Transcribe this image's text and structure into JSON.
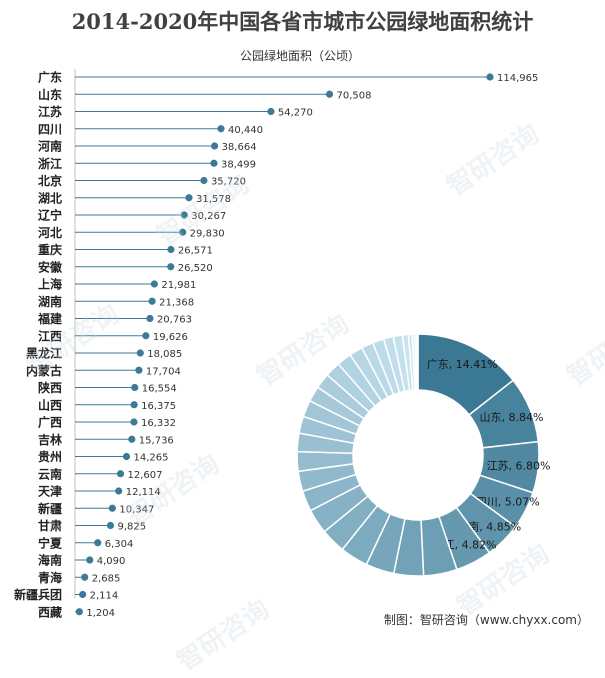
{
  "title": "2014-2020年中国各省市城市公园绿地面积统计",
  "footer": "制图：智研咨询（www.chyxx.com）",
  "watermark": "智研咨询",
  "colors": {
    "marker": "#3e7a98",
    "line": "#3e7a98",
    "donut_dark": "#3a7894",
    "donut_light": "#d8effa"
  },
  "chart_data": [
    {
      "type": "bar",
      "subtype": "lollipop",
      "title": "公园绿地面积（公顷）",
      "categories": [
        "广东",
        "山东",
        "江苏",
        "四川",
        "河南",
        "浙江",
        "北京",
        "湖北",
        "辽宁",
        "河北",
        "重庆",
        "安徽",
        "上海",
        "湖南",
        "福建",
        "江西",
        "黑龙江",
        "内蒙古",
        "陕西",
        "山西",
        "广西",
        "吉林",
        "贵州",
        "云南",
        "天津",
        "新疆",
        "甘肃",
        "宁夏",
        "海南",
        "青海",
        "新疆兵团",
        "西藏"
      ],
      "values": [
        114965,
        70508,
        54270,
        40440,
        38664,
        38499,
        35720,
        31578,
        30267,
        29830,
        26571,
        26520,
        21981,
        21368,
        20763,
        19626,
        18085,
        17704,
        16554,
        16375,
        16332,
        15736,
        14265,
        12607,
        12114,
        10347,
        9825,
        6304,
        4090,
        2685,
        2114,
        1204
      ],
      "value_labels": [
        "114,965",
        "70,508",
        "54,270",
        "40,440",
        "38,664",
        "38,499",
        "35,720",
        "31,578",
        "30,267",
        "29,830",
        "26,571",
        "26,520",
        "21,981",
        "21,368",
        "20,763",
        "19,626",
        "18,085",
        "17,704",
        "16,554",
        "16,375",
        "16,332",
        "15,736",
        "14,265",
        "12,607",
        "12,114",
        "10,347",
        "9,825",
        "6,304",
        "4,090",
        "2,685",
        "2,114",
        "1,204"
      ],
      "xlim": [
        0,
        114965
      ]
    },
    {
      "type": "pie",
      "subtype": "donut",
      "categories": [
        "广东",
        "山东",
        "江苏",
        "四川",
        "河南",
        "浙江",
        "北京",
        "湖北",
        "辽宁",
        "河北",
        "重庆",
        "安徽",
        "上海",
        "湖南",
        "福建",
        "江西",
        "黑龙江",
        "内蒙古",
        "陕西",
        "山西",
        "广西",
        "吉林",
        "贵州",
        "云南",
        "天津",
        "新疆",
        "甘肃",
        "宁夏",
        "海南",
        "青海",
        "新疆兵团",
        "西藏"
      ],
      "values": [
        114965,
        70508,
        54270,
        40440,
        38664,
        38499,
        35720,
        31578,
        30267,
        29830,
        26571,
        26520,
        21981,
        21368,
        20763,
        19626,
        18085,
        17704,
        16554,
        16375,
        16332,
        15736,
        14265,
        12607,
        12114,
        10347,
        9825,
        6304,
        4090,
        2685,
        2114,
        1204
      ],
      "labels": [
        "广东, 14.41%",
        "山东, 8.84%",
        "江苏, 6.80%",
        "四川, 5.07%",
        "河南, 4.85%",
        "浙江, 4.82%"
      ]
    }
  ]
}
